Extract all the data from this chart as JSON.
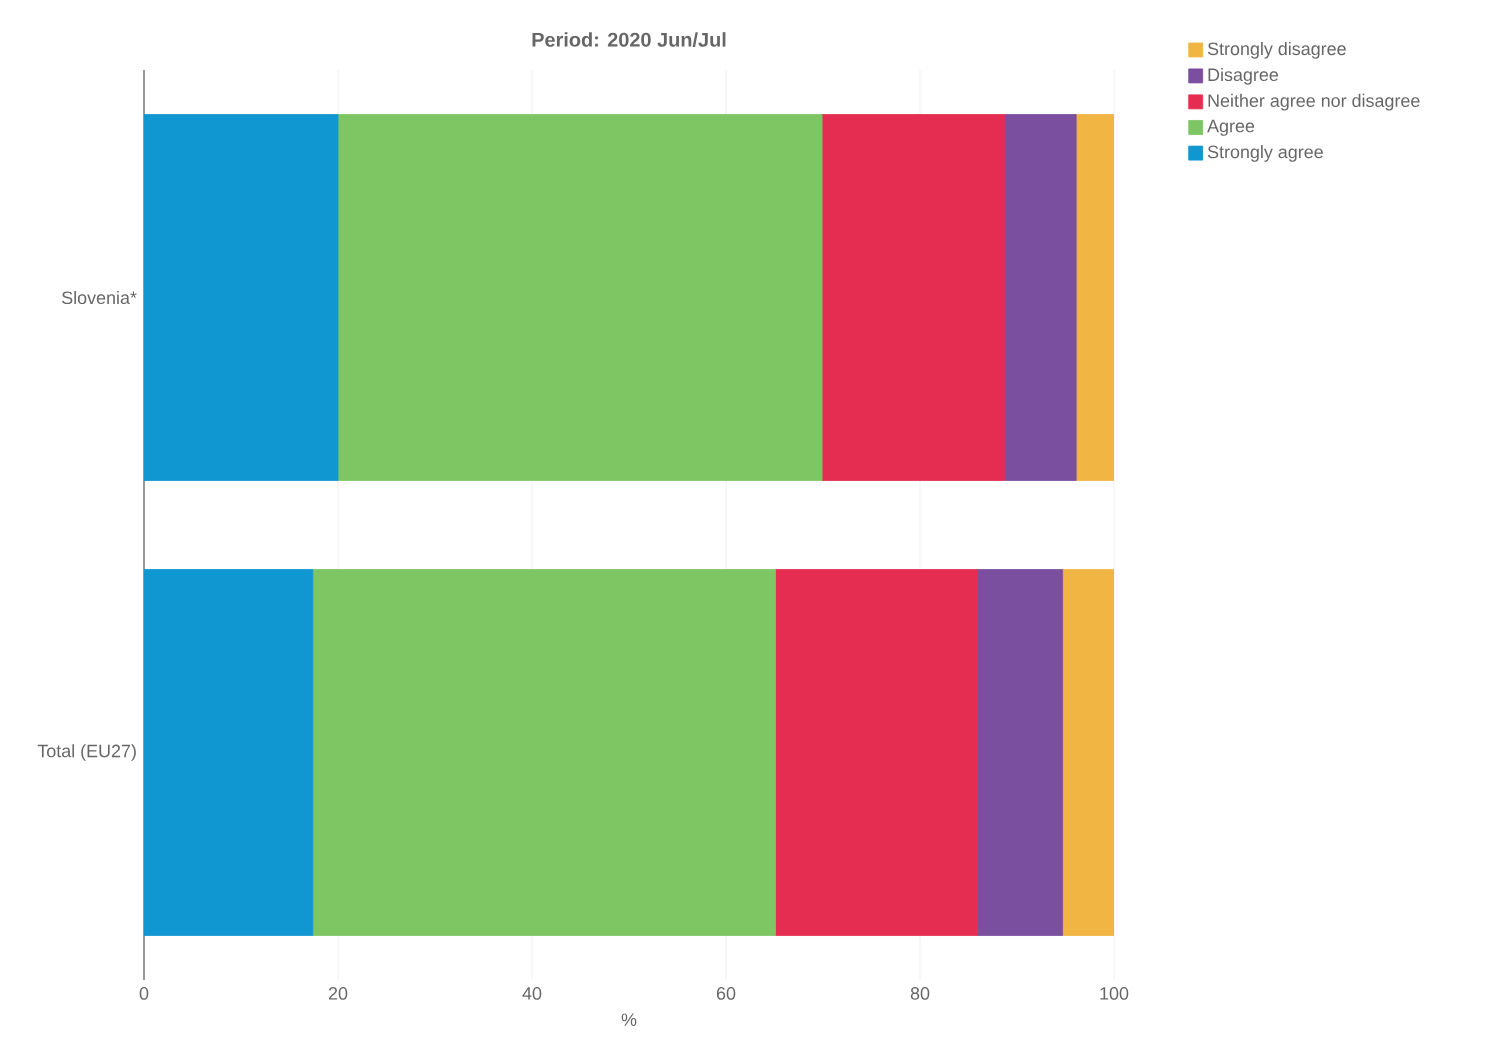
{
  "chart_data": {
    "type": "bar",
    "orientation": "horizontal",
    "stacked": true,
    "title": "Period: 2020 Jun/Jul",
    "xlabel": "%",
    "categories": [
      "Slovenia*",
      "Total (EU27)"
    ],
    "series": [
      {
        "name": "Strongly agree",
        "color": "#1096d0",
        "values": [
          20.0,
          17.4
        ]
      },
      {
        "name": "Agree",
        "color": "#7ec563",
        "values": [
          49.9,
          47.7
        ]
      },
      {
        "name": "Neither agree nor disagree",
        "color": "#e52d52",
        "values": [
          18.8,
          20.8
        ]
      },
      {
        "name": "Disagree",
        "color": "#7a4fa0",
        "values": [
          7.4,
          8.8
        ]
      },
      {
        "name": "Strongly disagree",
        "color": "#f0b542",
        "values": [
          3.9,
          5.3
        ]
      }
    ],
    "xlim": [
      0,
      100
    ],
    "xticks": [
      0,
      20,
      40,
      60,
      80,
      100
    ],
    "grid": "x",
    "legend": "top right"
  }
}
